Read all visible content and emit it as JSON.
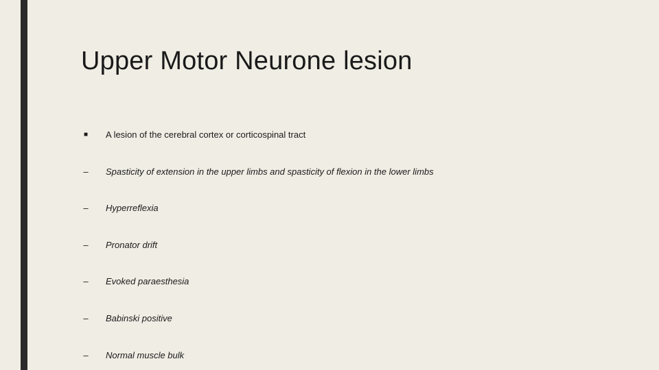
{
  "slide": {
    "background_color": "#f0ede4",
    "accent_bar_color": "#2a2a2a",
    "text_color": "#1a1a1a",
    "title": "Upper Motor Neurone lesion",
    "title_fontsize": 38,
    "body_fontsize": 13,
    "bullets": [
      {
        "marker": "■",
        "marker_type": "square",
        "text": "A lesion of the cerebral cortex or corticospinal tract",
        "italic": false
      },
      {
        "marker": "–",
        "marker_type": "dash",
        "text": "Spasticity of extension in the upper limbs and spasticity of flexion in the lower limbs",
        "italic": true
      },
      {
        "marker": "–",
        "marker_type": "dash",
        "text": "Hyperreflexia",
        "italic": true
      },
      {
        "marker": "–",
        "marker_type": "dash",
        "text": "Pronator drift",
        "italic": true
      },
      {
        "marker": "–",
        "marker_type": "dash",
        "text": "Evoked paraesthesia",
        "italic": true
      },
      {
        "marker": "–",
        "marker_type": "dash",
        "text": "Babinski positive",
        "italic": true
      },
      {
        "marker": "–",
        "marker_type": "dash",
        "text": "Normal muscle bulk",
        "italic": true
      }
    ]
  }
}
